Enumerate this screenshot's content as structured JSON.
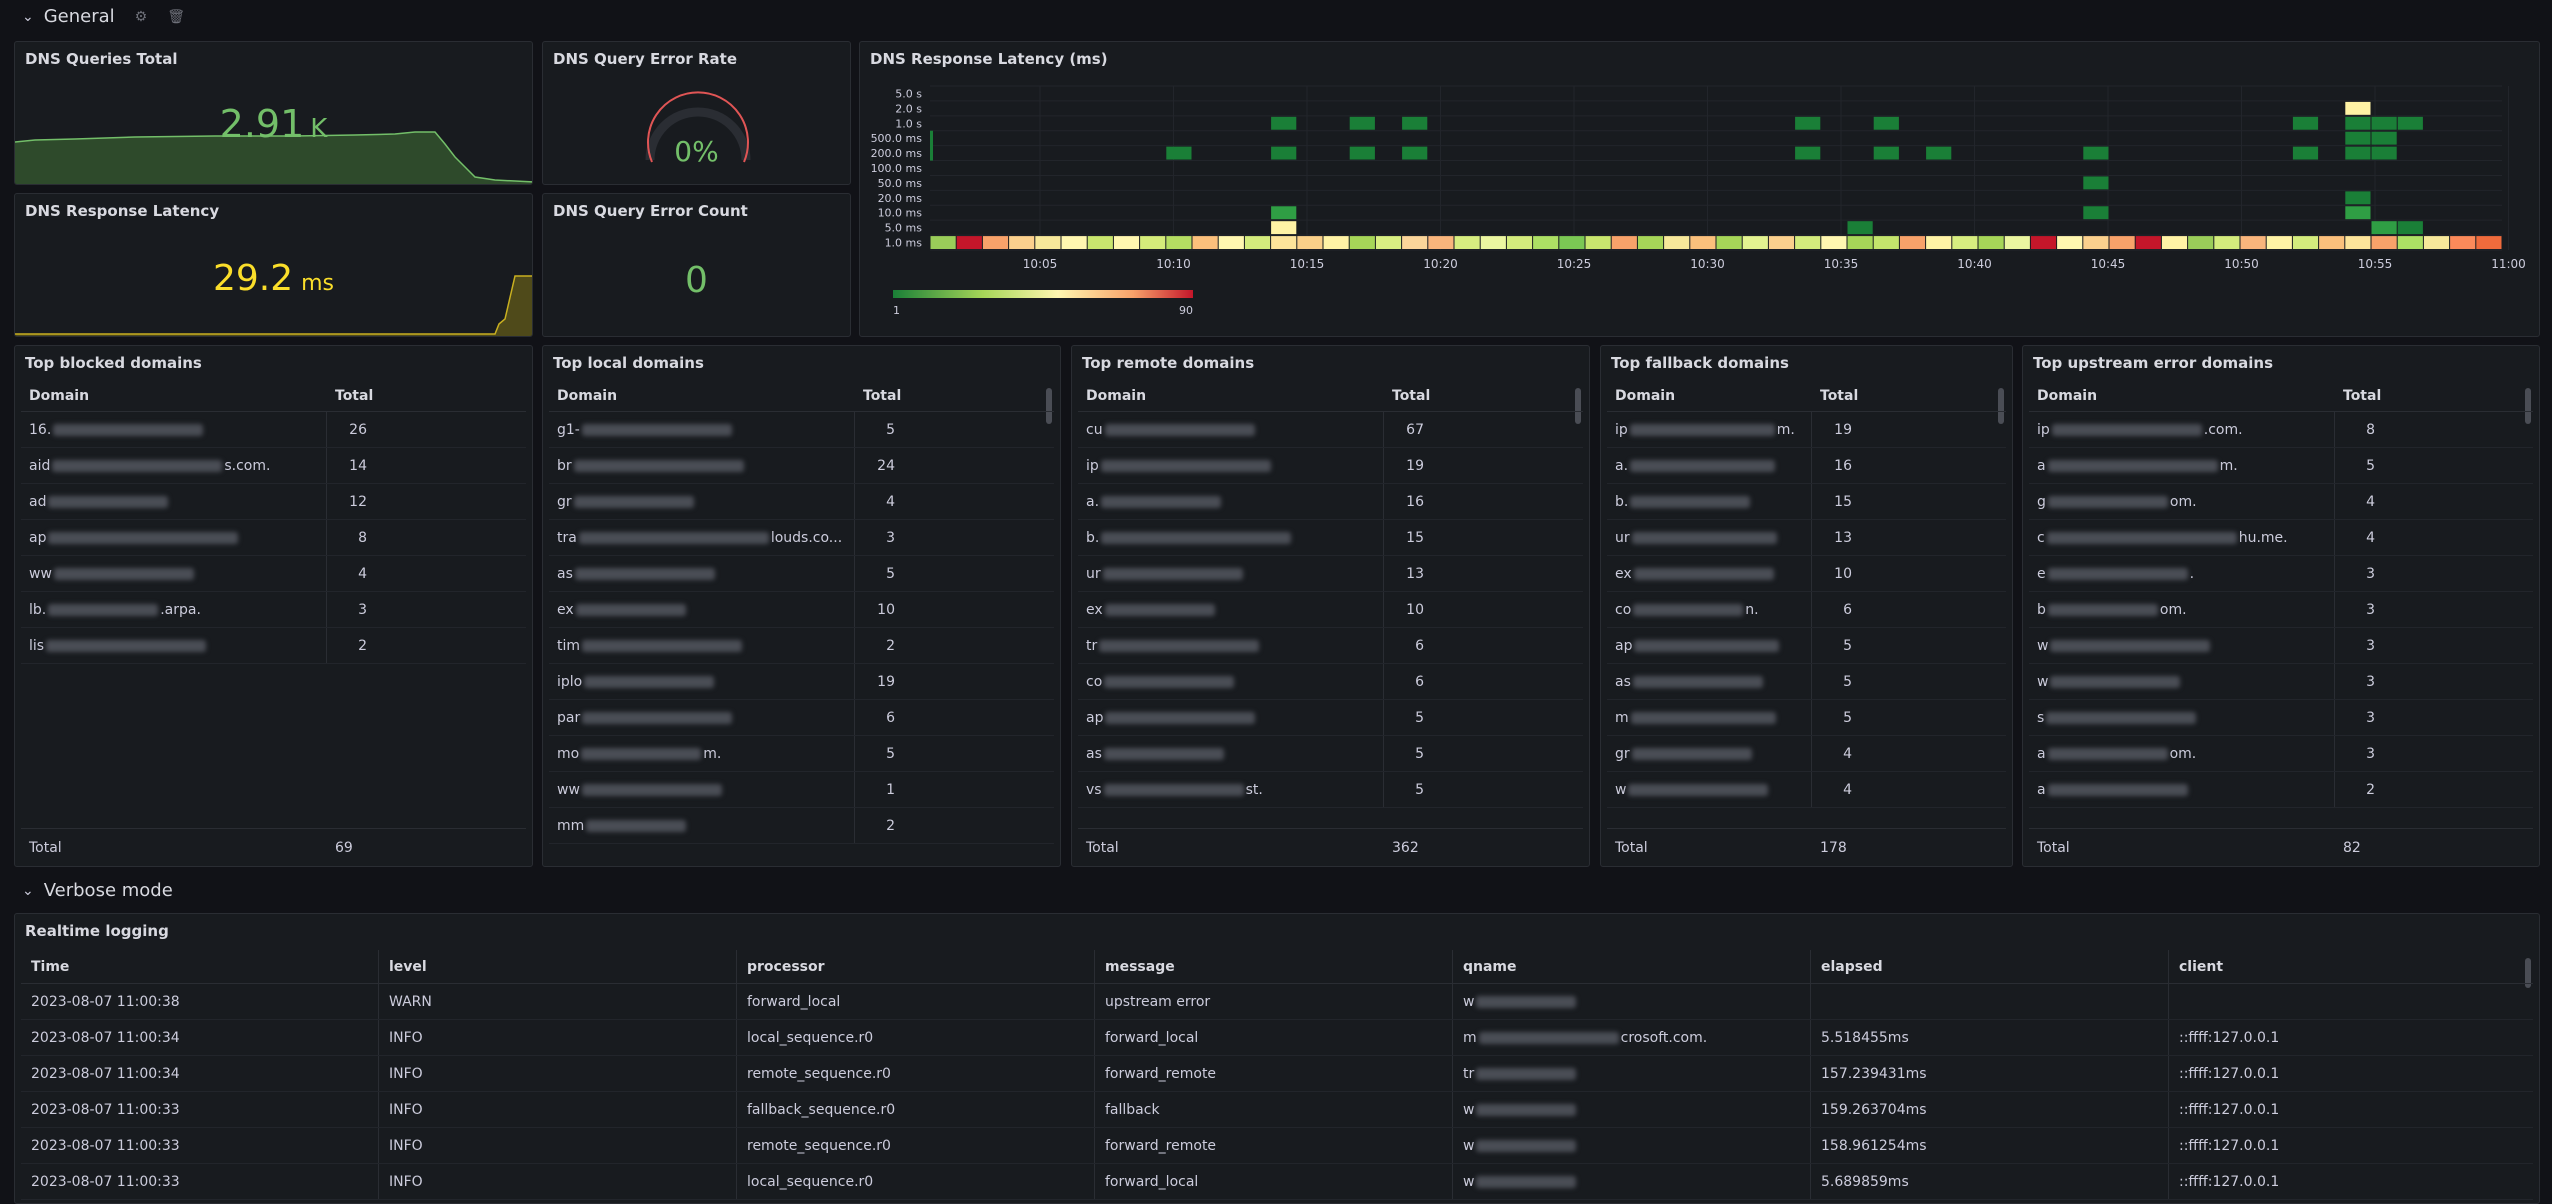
{
  "rows": {
    "general": "General",
    "verbose": "Verbose mode"
  },
  "icons": {
    "chevron": "chevron-down-icon",
    "settings": "gear-icon",
    "delete": "trash-icon"
  },
  "colors": {
    "green": "#73bf69",
    "yellow": "#fade2a",
    "blocked_bar": "#e0b400",
    "local_bar": "#8ab8ff",
    "remote_bar": "#4caf50",
    "fallback_bar": "#b5dfa7",
    "upstream_bar": "#b5dfa7"
  },
  "stats": {
    "queries_total": {
      "title": "DNS Queries Total",
      "value": "2.91",
      "unit": "K"
    },
    "error_rate": {
      "title": "DNS Query Error Rate",
      "value": "0%"
    },
    "latency": {
      "title": "DNS Response Latency",
      "value": "29.2",
      "unit": "ms"
    },
    "error_count": {
      "title": "DNS Query Error Count",
      "value": "0"
    }
  },
  "heatmap": {
    "title": "DNS Response Latency (ms)",
    "y_labels": [
      "5.0 s",
      "2.0 s",
      "1.0 s",
      "500.0 ms",
      "200.0 ms",
      "100.0 ms",
      "50.0 ms",
      "20.0 ms",
      "10.0 ms",
      "5.0 ms",
      "1.0 ms"
    ],
    "x_labels": [
      "10:05",
      "10:10",
      "10:15",
      "10:20",
      "10:25",
      "10:30",
      "10:35",
      "10:40",
      "10:45",
      "10:50",
      "10:55",
      "11:00"
    ],
    "legend_min": "1",
    "legend_max": "90"
  },
  "tables": {
    "blocked": {
      "title": "Top blocked domains",
      "col_domain": "Domain",
      "col_total": "Total",
      "rows": [
        {
          "pre": "16.",
          "post": "",
          "value": 26
        },
        {
          "pre": "aid",
          "post": "s.com.",
          "value": 14
        },
        {
          "pre": "ad",
          "post": "",
          "value": 12
        },
        {
          "pre": "ap",
          "post": "",
          "value": 8
        },
        {
          "pre": "ww",
          "post": "",
          "value": 4
        },
        {
          "pre": "lb.",
          "post": ".arpa.",
          "value": 3
        },
        {
          "pre": "lis",
          "post": "",
          "value": 2
        }
      ],
      "max": 26,
      "total_label": "Total",
      "total_value": "69"
    },
    "local": {
      "title": "Top local domains",
      "col_domain": "Domain",
      "col_total": "Total",
      "rows": [
        {
          "pre": "g1-",
          "post": "",
          "value": 5
        },
        {
          "pre": "br",
          "post": "",
          "value": 24
        },
        {
          "pre": "gr",
          "post": "",
          "value": 4
        },
        {
          "pre": "tra",
          "post": "louds.co...",
          "value": 3
        },
        {
          "pre": "as",
          "post": "",
          "value": 5
        },
        {
          "pre": "ex",
          "post": "",
          "value": 10
        },
        {
          "pre": "tim",
          "post": "",
          "value": 2
        },
        {
          "pre": "iplo",
          "post": "",
          "value": 19
        },
        {
          "pre": "par",
          "post": "",
          "value": 6
        },
        {
          "pre": "mo",
          "post": "m.",
          "value": 5
        },
        {
          "pre": "ww",
          "post": "",
          "value": 1
        },
        {
          "pre": "mm",
          "post": "",
          "value": 2
        }
      ],
      "max": 24
    },
    "remote": {
      "title": "Top remote domains",
      "col_domain": "Domain",
      "col_total": "Total",
      "rows": [
        {
          "pre": "cu",
          "post": "",
          "value": 67
        },
        {
          "pre": "ip",
          "post": "",
          "value": 19
        },
        {
          "pre": "a.",
          "post": "",
          "value": 16
        },
        {
          "pre": "b.",
          "post": "",
          "value": 15
        },
        {
          "pre": "ur",
          "post": "",
          "value": 13
        },
        {
          "pre": "ex",
          "post": "",
          "value": 10
        },
        {
          "pre": "tr",
          "post": "",
          "value": 6
        },
        {
          "pre": "co",
          "post": "",
          "value": 6
        },
        {
          "pre": "ap",
          "post": "",
          "value": 5
        },
        {
          "pre": "as",
          "post": "",
          "value": 5
        },
        {
          "pre": "vs",
          "post": "st.",
          "value": 5
        }
      ],
      "max": 67,
      "total_label": "Total",
      "total_value": "362"
    },
    "fallback": {
      "title": "Top fallback domains",
      "col_domain": "Domain",
      "col_total": "Total",
      "rows": [
        {
          "pre": "ip",
          "post": "m.",
          "value": 19
        },
        {
          "pre": "a.",
          "post": "",
          "value": 16
        },
        {
          "pre": "b.",
          "post": "",
          "value": 15
        },
        {
          "pre": "ur",
          "post": "",
          "value": 13
        },
        {
          "pre": "ex",
          "post": "",
          "value": 10
        },
        {
          "pre": "co",
          "post": "n.",
          "value": 6
        },
        {
          "pre": "ap",
          "post": "",
          "value": 5
        },
        {
          "pre": "as",
          "post": "",
          "value": 5
        },
        {
          "pre": "m",
          "post": "",
          "value": 5
        },
        {
          "pre": "gr",
          "post": "",
          "value": 4
        },
        {
          "pre": "w",
          "post": "",
          "value": 4
        }
      ],
      "max": 19,
      "total_label": "Total",
      "total_value": "178"
    },
    "upstream": {
      "title": "Top upstream error domains",
      "col_domain": "Domain",
      "col_total": "Total",
      "rows": [
        {
          "pre": "ip",
          "post": ".com.",
          "value": 8
        },
        {
          "pre": "a",
          "post": "m.",
          "value": 5
        },
        {
          "pre": "g",
          "post": "om.",
          "value": 4
        },
        {
          "pre": "c",
          "post": "hu.me.",
          "value": 4
        },
        {
          "pre": "e",
          "post": ".",
          "value": 3
        },
        {
          "pre": "b",
          "post": "om.",
          "value": 3
        },
        {
          "pre": "w",
          "post": "",
          "value": 3
        },
        {
          "pre": "w",
          "post": "",
          "value": 3
        },
        {
          "pre": "s",
          "post": "",
          "value": 3
        },
        {
          "pre": "a",
          "post": "om.",
          "value": 3
        },
        {
          "pre": "a",
          "post": "",
          "value": 2
        }
      ],
      "max": 8,
      "total_label": "Total",
      "total_value": "82"
    }
  },
  "log": {
    "title": "Realtime logging",
    "columns": [
      "Time",
      "level",
      "processor",
      "message",
      "qname",
      "elapsed",
      "client"
    ],
    "rows": [
      {
        "time": "2023-08-07 11:00:38",
        "level": "WARN",
        "processor": "forward_local",
        "message": "upstream error",
        "qname_pre": "w",
        "qname_post": "",
        "elapsed": "",
        "client": ""
      },
      {
        "time": "2023-08-07 11:00:34",
        "level": "INFO",
        "processor": "local_sequence.r0",
        "message": "forward_local",
        "qname_pre": "m",
        "qname_post": "crosoft.com.",
        "elapsed": "5.518455ms",
        "client": "::ffff:127.0.0.1"
      },
      {
        "time": "2023-08-07 11:00:34",
        "level": "INFO",
        "processor": "remote_sequence.r0",
        "message": "forward_remote",
        "qname_pre": "tr",
        "qname_post": "",
        "elapsed": "157.239431ms",
        "client": "::ffff:127.0.0.1"
      },
      {
        "time": "2023-08-07 11:00:33",
        "level": "INFO",
        "processor": "fallback_sequence.r0",
        "message": "fallback",
        "qname_pre": "w",
        "qname_post": "",
        "elapsed": "159.263704ms",
        "client": "::ffff:127.0.0.1"
      },
      {
        "time": "2023-08-07 11:00:33",
        "level": "INFO",
        "processor": "remote_sequence.r0",
        "message": "forward_remote",
        "qname_pre": "w",
        "qname_post": "",
        "elapsed": "158.961254ms",
        "client": "::ffff:127.0.0.1"
      },
      {
        "time": "2023-08-07 11:00:33",
        "level": "INFO",
        "processor": "local_sequence.r0",
        "message": "forward_local",
        "qname_pre": "w",
        "qname_post": "",
        "elapsed": "5.689859ms",
        "client": "::ffff:127.0.0.1"
      }
    ]
  }
}
